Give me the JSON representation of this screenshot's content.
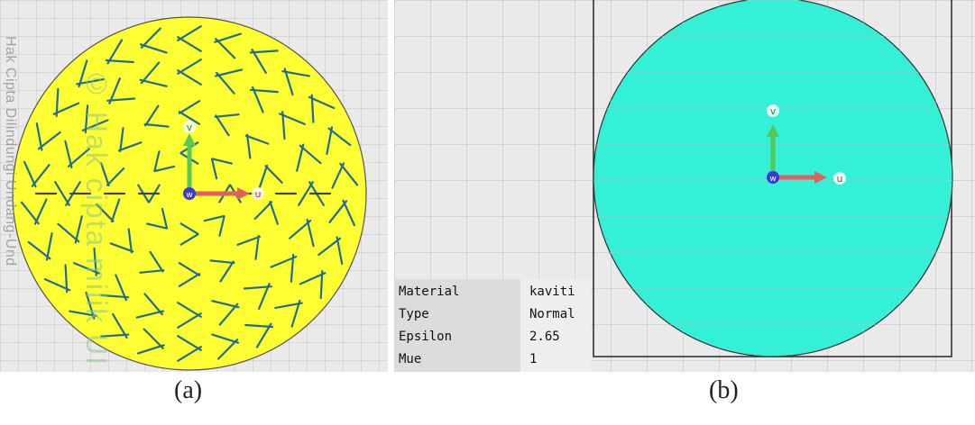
{
  "watermark": {
    "side_text": "Hak Cipta Dilindungi Undang-Und",
    "logo_text": "© Hak cipta milik UI"
  },
  "panel_a": {
    "caption": "(a)",
    "axes": {
      "v": "v",
      "u": "u",
      "w": "w"
    },
    "colors": {
      "disc": "#ffff33",
      "background": "#eaeaea",
      "slot": "#1f6f8b"
    }
  },
  "panel_b": {
    "caption": "(b)",
    "axes": {
      "v": "v",
      "u": "u",
      "w": "w"
    },
    "colors": {
      "disc": "#33f0d6",
      "background": "#eaeaea"
    },
    "properties": [
      {
        "label": "Material",
        "value": "kaviti"
      },
      {
        "label": "Type",
        "value": "Normal"
      },
      {
        "label": "Epsilon",
        "value": "2.65"
      },
      {
        "label": "Mue",
        "value": "1"
      }
    ]
  }
}
